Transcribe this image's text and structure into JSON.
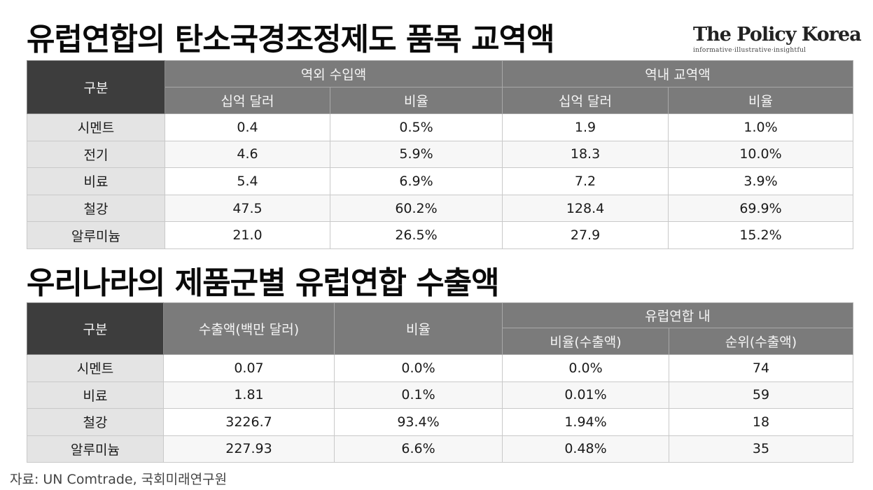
{
  "title1": "유럽연합의 탄소국경조정제도 품목 교역액",
  "title2": "우리나라의 제품군별 유럽연합 수출액",
  "logo": {
    "name": "The Policy Korea",
    "tagline": "informative·illustrative·insightful"
  },
  "table1": {
    "corner": "구분",
    "group_headers": [
      "역외 수입액",
      "역내 교역액"
    ],
    "sub_headers": [
      "십억 달러",
      "비율",
      "십억 달러",
      "비율"
    ],
    "rows": [
      {
        "label": "시멘트",
        "values": [
          "0.4",
          "0.5%",
          "1.9",
          "1.0%"
        ]
      },
      {
        "label": "전기",
        "values": [
          "4.6",
          "5.9%",
          "18.3",
          "10.0%"
        ]
      },
      {
        "label": "비료",
        "values": [
          "5.4",
          "6.9%",
          "7.2",
          "3.9%"
        ]
      },
      {
        "label": "철강",
        "values": [
          "47.5",
          "60.2%",
          "128.4",
          "69.9%"
        ]
      },
      {
        "label": "알루미늄",
        "values": [
          "21.0",
          "26.5%",
          "27.9",
          "15.2%"
        ]
      }
    ]
  },
  "table2": {
    "corner": "구분",
    "col_export": "수출액(백만 달러)",
    "col_ratio": "비율",
    "group_header": "유럽연합 내",
    "sub_headers": [
      "비율(수출액)",
      "순위(수출액)"
    ],
    "rows": [
      {
        "label": "시멘트",
        "values": [
          "0.07",
          "0.0%",
          "0.0%",
          "74"
        ]
      },
      {
        "label": "비료",
        "values": [
          "1.81",
          "0.1%",
          "0.01%",
          "59"
        ]
      },
      {
        "label": "철강",
        "values": [
          "3226.7",
          "93.4%",
          "1.94%",
          "18"
        ]
      },
      {
        "label": "알루미늄",
        "values": [
          "227.93",
          "6.6%",
          "0.48%",
          "35"
        ]
      }
    ]
  },
  "source": "자료: UN Comtrade, 국회미래연구원"
}
